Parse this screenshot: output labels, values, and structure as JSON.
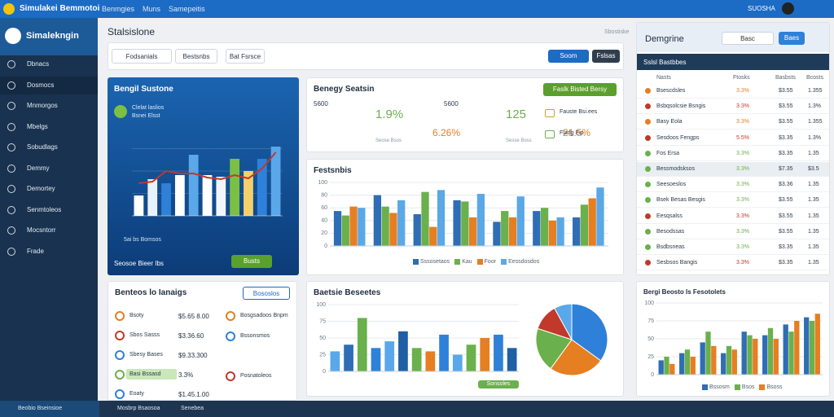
{
  "topbar": {
    "title": "Simulakei Bemmotoi",
    "menu": [
      "Benmgies",
      "Muns",
      "Samepeitis"
    ],
    "user": "SUOSHA"
  },
  "sidebar": {
    "brand": "Simalekngin",
    "items": [
      "Dbnacs",
      "Dosmocs",
      "Mnmorgos",
      "Mbelgs",
      "Sobudlags",
      "Demmy",
      "Demortey",
      "Senmtoleos",
      "Mocsntorr",
      "Frade"
    ]
  },
  "header": {
    "title": "Stalsislone",
    "link": "Sbostiske"
  },
  "toolbar": {
    "tabs": [
      "Fodsanials",
      "Bestsnbs",
      "Bat Fsrsce"
    ],
    "buttons": [
      "Soom",
      "Fslsas"
    ]
  },
  "overview": {
    "title": "Bengil Sustone",
    "subtitle": "Clelat laslios",
    "note": "Bsnei Elsst",
    "axis_note": "5ai bs Bomsos",
    "footer": "Seosoe Bieer Ibs",
    "button": "Busts",
    "chart": {
      "type": "bar",
      "ylim": [
        0,
        110
      ],
      "values": [
        25,
        45,
        40,
        50,
        75,
        50,
        48,
        70,
        55,
        70,
        85
      ],
      "colors": [
        "#ffffff",
        "#e9f1fb",
        "#2f80d9",
        "#ffffff",
        "#5aa7ea",
        "#ffffff",
        "#f2f6fb",
        "#7bc043",
        "#f5d06a",
        "#2f80d9",
        "#5aa7ea"
      ],
      "line": {
        "color": "#c0392b",
        "values": [
          40,
          42,
          55,
          52,
          52,
          47,
          45,
          50,
          46,
          58,
          78
        ]
      }
    }
  },
  "energy": {
    "title": "Benegy Seatsin",
    "button": "Faslk Bisted Bersy",
    "donuts": [
      {
        "type": "donut",
        "center": "5600",
        "values": [
          40,
          35,
          25
        ],
        "colors": [
          "#c0392b",
          "#e67e22",
          "#2f80d9"
        ],
        "stats": [
          "1.9%",
          "6.26%"
        ],
        "note": "Seose Bsos"
      },
      {
        "type": "donut",
        "center": "5600",
        "values": [
          70,
          20,
          10
        ],
        "colors": [
          "#2f80d9",
          "#6ab04c",
          "#d6e4f0"
        ],
        "stats": [
          "125",
          "21.5%"
        ],
        "note": "Sesse Boss"
      }
    ],
    "items": [
      "Fauste Bsi.ees",
      "Fladg Eip"
    ]
  },
  "factorials": {
    "title": "Festsnbis",
    "chart": {
      "type": "bar",
      "ylim": [
        0,
        100
      ],
      "yticks": [
        0,
        20,
        40,
        60,
        80,
        100
      ],
      "series": [
        {
          "name": "Sssosetaos",
          "color": "#2f6db5",
          "values": [
            55,
            80,
            50,
            72,
            38,
            55,
            45
          ]
        },
        {
          "name": "Kau",
          "color": "#6ab04c",
          "values": [
            48,
            62,
            85,
            70,
            55,
            60,
            65
          ]
        },
        {
          "name": "Foor",
          "color": "#e67e22",
          "values": [
            62,
            52,
            30,
            45,
            45,
            40,
            75
          ]
        },
        {
          "name": "Eessdosdos",
          "color": "#5aa8e6",
          "values": [
            60,
            72,
            88,
            82,
            78,
            45,
            92
          ]
        }
      ]
    }
  },
  "accounts": {
    "title": "Benteos lo Ianaigs",
    "button": "Bososlos",
    "rows": [
      {
        "label": "Bsoty",
        "value": "$5.65 8.00",
        "color": "#e67e22"
      },
      {
        "label": "Sbos Sasss",
        "value": "$3.36.60",
        "color": "#c0392b"
      },
      {
        "label": "Sbesy Bases",
        "value": "$9.33.300",
        "color": "#2f80d9"
      },
      {
        "label": "Basi Bssasd",
        "value": "3.3%",
        "color": "#6ab04c"
      },
      {
        "label": "Eoaty",
        "value": "$1.45.1.00",
        "color": "#2f80d9"
      }
    ],
    "items": [
      "Bosgsadoos Bnpm",
      "Bssonsmos",
      "Posnatoleos"
    ]
  },
  "revenue": {
    "title": "Baetsie Beseetes",
    "legend": "Sonsoles",
    "chart": {
      "type": "bar",
      "ylim": [
        0,
        100
      ],
      "yticks": [
        0,
        25,
        50,
        75,
        100
      ],
      "values": [
        30,
        40,
        80,
        35,
        45,
        60,
        35,
        30,
        55,
        25,
        40,
        50,
        55,
        35
      ],
      "colors": [
        "#5aa7ea",
        "#2f6db5",
        "#6ab04c",
        "#2f80d9",
        "#5aa7ea",
        "#1f5fa3",
        "#6ab04c",
        "#e67e22",
        "#2f80d9",
        "#5aa7ea",
        "#6ab04c",
        "#e67e22",
        "#2f80d9",
        "#1f5fa3"
      ]
    },
    "pie": {
      "type": "pie",
      "values": [
        35,
        25,
        20,
        12,
        8
      ],
      "colors": [
        "#2f80d9",
        "#e67e22",
        "#6ab04c",
        "#c0392b",
        "#5aa7ea"
      ]
    }
  },
  "right_panel": {
    "title": "Demgrine",
    "buttons": [
      "Basc",
      "Baes"
    ],
    "table_title": "Sslsl Bastbbes",
    "columns": [
      "Nasts",
      "Ftosks",
      "Basbsts",
      "Bcosts"
    ],
    "rows": [
      {
        "cells": [
          "Bsescdsles",
          "3.3%",
          "$3.55",
          "1.355"
        ],
        "color": "#e67e22"
      },
      {
        "cells": [
          "Bsbqsolcsie Bsngis",
          "3.3%",
          "$3.55",
          "1.3%"
        ],
        "color": "#c0392b"
      },
      {
        "cells": [
          "Basy Eola",
          "3.3%",
          "$3.55",
          "1.355"
        ],
        "color": "#e67e22"
      },
      {
        "cells": [
          "Sesdoos Fengps",
          "5.5%",
          "$3.35",
          "1.3%"
        ],
        "color": "#c0392b"
      },
      {
        "cells": [
          "Fos Ersa",
          "3.3%",
          "$3.35",
          "1.35"
        ],
        "color": "#6ab04c"
      },
      {
        "cells": [
          "Bessmodsksos",
          "3.3%",
          "$7.35",
          "$3.5"
        ],
        "color": "#6ab04c"
      },
      {
        "cells": [
          "Seesoeslos",
          "3.3%",
          "$3.36",
          "1.35"
        ],
        "color": "#6ab04c"
      },
      {
        "cells": [
          "Bsek Besas Besgis",
          "3.3%",
          "$3.55",
          "1.35"
        ],
        "color": "#6ab04c"
      },
      {
        "cells": [
          "Eesqsalss",
          "3.3%",
          "$3.55",
          "1.35"
        ],
        "color": "#c0392b"
      },
      {
        "cells": [
          "Besodssas",
          "3.3%",
          "$3.55",
          "1.35"
        ],
        "color": "#6ab04c"
      },
      {
        "cells": [
          "Bsdbsneas",
          "3.3%",
          "$3.35",
          "1.35"
        ],
        "color": "#6ab04c"
      },
      {
        "cells": [
          "Sesbsos Bangis",
          "3.3%",
          "$3.35",
          "1.35"
        ],
        "color": "#c0392b"
      }
    ]
  },
  "forecast": {
    "title": "Bergi Beosto Is Fesotolets",
    "chart": {
      "type": "bar",
      "ylim": [
        0,
        100
      ],
      "yticks": [
        0,
        25,
        50,
        75,
        100
      ],
      "series": [
        {
          "name": "Bssosm",
          "color": "#2f6db5",
          "values": [
            20,
            30,
            45,
            30,
            60,
            55,
            70,
            80
          ]
        },
        {
          "name": "Bsos",
          "color": "#6ab04c",
          "values": [
            25,
            35,
            60,
            40,
            55,
            65,
            60,
            75
          ]
        },
        {
          "name": "Bsoss",
          "color": "#e67e22",
          "values": [
            15,
            25,
            40,
            35,
            50,
            50,
            75,
            85
          ]
        }
      ]
    }
  },
  "footer": {
    "items": [
      "Beobio Bseinsioe",
      "Mosbrp Bsaosoa",
      "Senebea"
    ]
  }
}
